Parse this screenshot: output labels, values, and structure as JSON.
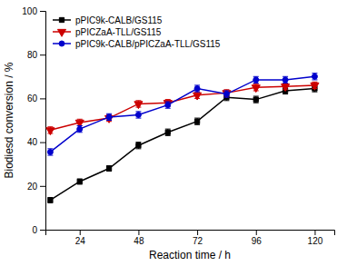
{
  "chart_data": {
    "type": "line",
    "xlabel": "Reaction time / h",
    "ylabel": "Biodiesd conversion / %",
    "x": [
      12,
      24,
      36,
      48,
      60,
      72,
      84,
      96,
      108,
      120
    ],
    "xlim": [
      10,
      128
    ],
    "ylim": [
      0,
      100
    ],
    "xticks": [
      24,
      48,
      72,
      96,
      120
    ],
    "yticks": [
      0,
      20,
      40,
      60,
      80,
      100
    ],
    "legend": "upper left",
    "series": [
      {
        "name": "pPIC9k-CALB/GS115",
        "color": "#000000",
        "marker": "square",
        "values": [
          13.5,
          22.0,
          28.0,
          38.5,
          44.5,
          49.5,
          60.5,
          59.5,
          63.5,
          64.5
        ],
        "errors": [
          1.2,
          1.2,
          1.2,
          1.5,
          1.5,
          1.5,
          1.5,
          1.5,
          1.5,
          1.5
        ]
      },
      {
        "name": "pPICZaA-TLL/GS115",
        "color": "#cc0000",
        "marker": "triangle-down",
        "values": [
          45.5,
          49.0,
          51.0,
          57.5,
          58.0,
          61.5,
          62.5,
          65.0,
          65.5,
          66.0
        ],
        "errors": [
          1.5,
          1.5,
          1.5,
          1.5,
          1.5,
          1.5,
          1.5,
          1.5,
          1.5,
          1.5
        ]
      },
      {
        "name": "pPIC9k-CALB/pPICZaA-TLL/GS115",
        "color": "#0000cc",
        "marker": "circle",
        "values": [
          35.5,
          46.0,
          51.5,
          52.5,
          57.0,
          64.5,
          62.0,
          68.5,
          68.5,
          70.0
        ],
        "errors": [
          1.5,
          1.5,
          1.5,
          1.5,
          1.5,
          1.5,
          1.5,
          1.5,
          1.5,
          1.5
        ]
      }
    ]
  }
}
